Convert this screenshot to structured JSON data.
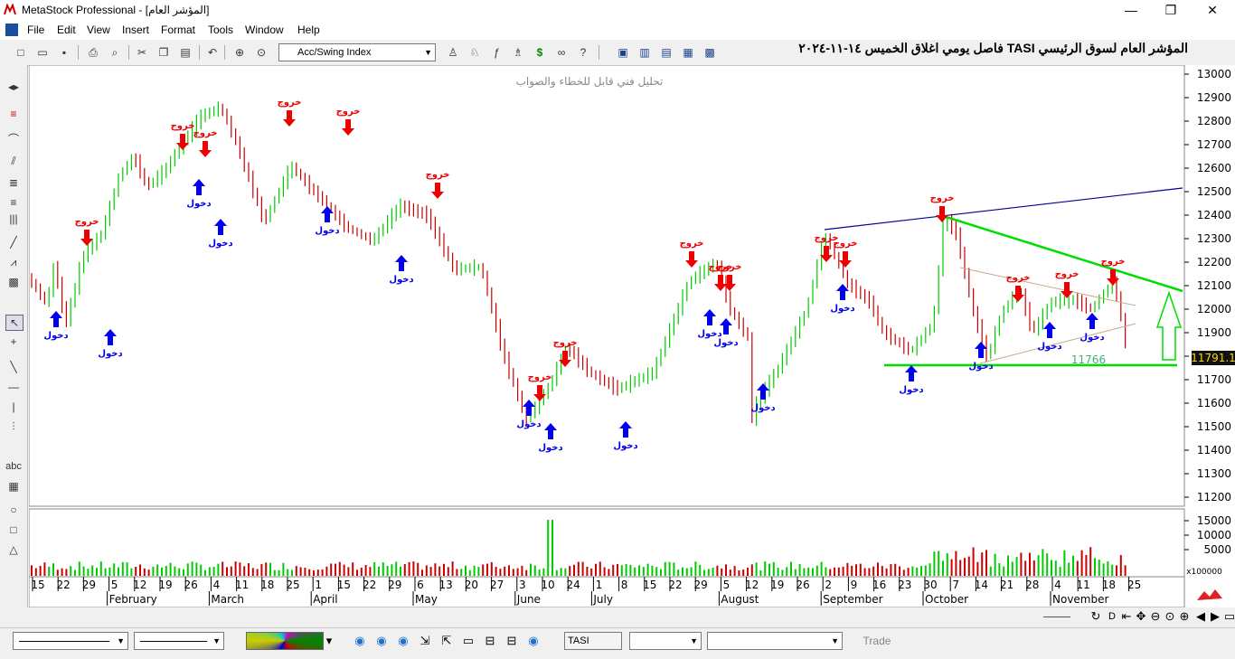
{
  "window": {
    "title": "MetaStock Professional - [المؤشر العام]",
    "controls": [
      "—",
      "❐",
      "✕"
    ]
  },
  "menu": [
    "File",
    "Edit",
    "View",
    "Insert",
    "Format",
    "Tools",
    "Window",
    "Help"
  ],
  "mdi_controls": [
    "_",
    "❐",
    "✕"
  ],
  "toolbar": {
    "indicator_select": "Acc/Swing Index"
  },
  "chart": {
    "title": "المؤشر العام لسوق الرئيسي TASI فاصل يومي اغلاق الخميس ١٤-١١-٢٠٢٤",
    "subtitle": "تحليل فني قابل للخطاء والصواب",
    "last_price": "11791.1",
    "support_label": "11766",
    "entry_label": "دخول",
    "exit_label": "خروج",
    "volume_multiplier": "x100000"
  },
  "chart_data": {
    "type": "bar",
    "price_axis": {
      "min": 11200,
      "max": 13000,
      "ticks": [
        13000,
        12900,
        12800,
        12700,
        12600,
        12500,
        12400,
        12300,
        12200,
        12100,
        12000,
        11900,
        11800,
        11700,
        11600,
        11500,
        11400,
        11300,
        11200
      ]
    },
    "volume_axis": {
      "ticks": [
        15000,
        10000,
        5000
      ]
    },
    "date_axis": {
      "days": [
        "15",
        "22",
        "29",
        "5",
        "12",
        "19",
        "26",
        "4",
        "11",
        "18",
        "25",
        "1",
        "15",
        "22",
        "29",
        "6",
        "13",
        "20",
        "27",
        "3",
        "10",
        "24",
        "1",
        "8",
        "15",
        "22",
        "29",
        "5",
        "12",
        "19",
        "26",
        "2",
        "9",
        "16",
        "23",
        "30",
        "7",
        "14",
        "21",
        "28",
        "4",
        "11",
        "18",
        "25"
      ],
      "months": [
        "February",
        "March",
        "April",
        "May",
        "June",
        "July",
        "August",
        "September",
        "October",
        "November"
      ]
    },
    "support_level": 11766,
    "last_close": 11791.1
  },
  "statusbar": {
    "symbol": "TASI",
    "trade_label": "Trade"
  },
  "colors": {
    "up": "#00cc00",
    "down": "#cc0000",
    "entry": "#0000ee",
    "exit": "#ee0000",
    "trend": "#00dd00",
    "channel": "#000099"
  }
}
